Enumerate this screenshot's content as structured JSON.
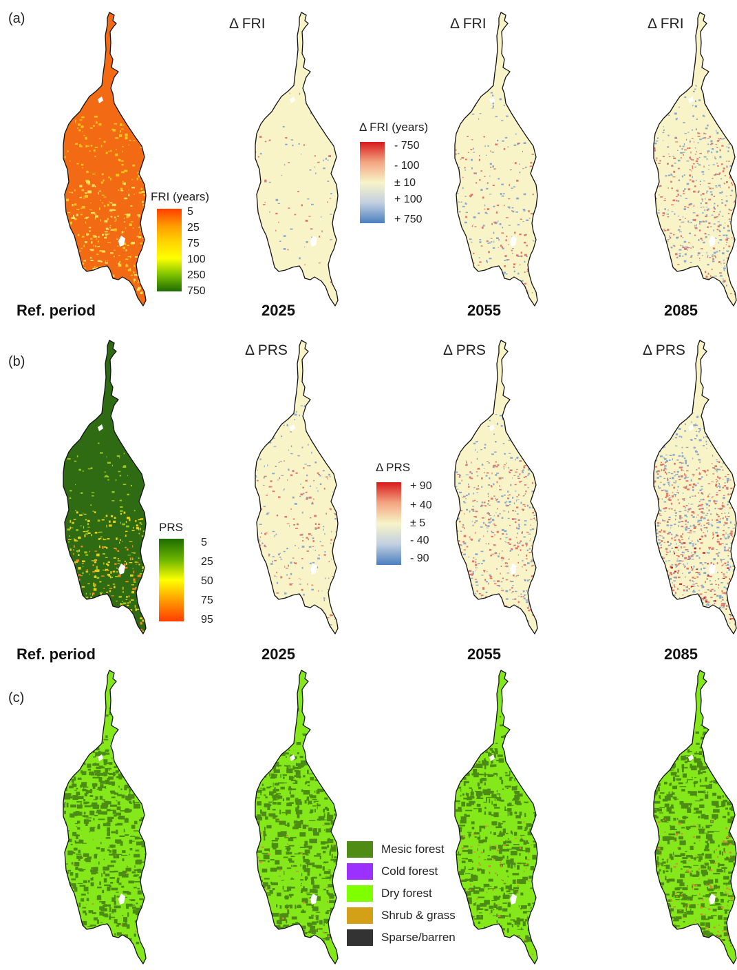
{
  "panels": {
    "a": "(a)",
    "b": "(b)",
    "c": "(c)"
  },
  "rows": {
    "fri": {
      "titles": [
        "Δ FRI",
        "Δ FRI",
        "Δ FRI"
      ],
      "periods": [
        "Ref. period",
        "2025",
        "2055",
        "2085"
      ],
      "legend_abs": {
        "title": "FRI (years)",
        "ticks": [
          "5",
          "25",
          "75",
          "100",
          "250",
          "750"
        ],
        "colors": [
          "#ff3d00",
          "#ff9a00",
          "#ffd400",
          "#ffff00",
          "#7cc200",
          "#1e6b00"
        ]
      },
      "legend_delta": {
        "title": "Δ FRI (years)",
        "ticks": [
          "- 750",
          "- 100",
          "± 10",
          "+ 100",
          "+ 750"
        ],
        "colors": [
          "#d7191c",
          "#f4a582",
          "#f7f4c8",
          "#c2cfe0",
          "#4a7fbf"
        ]
      }
    },
    "prs": {
      "titles": [
        "Δ PRS",
        "Δ PRS",
        "Δ PRS"
      ],
      "periods": [
        "Ref. period",
        "2025",
        "2055",
        "2085"
      ],
      "legend_abs": {
        "title": "PRS",
        "ticks": [
          "5",
          "25",
          "50",
          "75",
          "95"
        ],
        "colors": [
          "#1e6b00",
          "#6bb400",
          "#ffff00",
          "#ff9a00",
          "#ff3d00"
        ]
      },
      "legend_delta": {
        "title": "Δ PRS",
        "ticks": [
          "+ 90",
          "+ 40",
          "± 5",
          "- 40",
          "- 90"
        ],
        "colors": [
          "#d7191c",
          "#f4a582",
          "#f7f4c8",
          "#c2cfe0",
          "#4a7fbf"
        ]
      }
    },
    "veg": {
      "legend": [
        {
          "label": "Mesic forest",
          "color": "#4e8c14"
        },
        {
          "label": "Cold forest",
          "color": "#9b30ff"
        },
        {
          "label": "Dry forest",
          "color": "#7fff00"
        },
        {
          "label": "Shrub & grass",
          "color": "#d4a017"
        },
        {
          "label": "Sparse/barren",
          "color": "#333333"
        }
      ]
    }
  },
  "map_colors": {
    "fri_ref": "#f26a14",
    "fri_ref_speck": "#f6c31a",
    "prs_ref": "#2e6b12",
    "prs_ref_speck": "#e7d21a",
    "delta_fill": "#f8f4c8",
    "delta_red": "#e0786b",
    "delta_blue": "#8aa7cc",
    "veg_dry": "#84e81a",
    "veg_mesic": "#4c8c14",
    "veg_shrub": "#cf8f3a",
    "outline": "#111111"
  }
}
